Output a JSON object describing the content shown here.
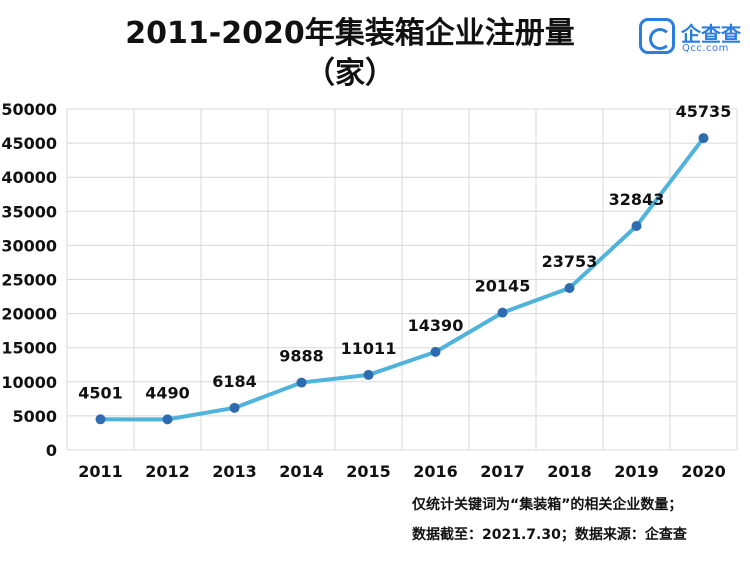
{
  "title_line1": "2011-2020年集装箱企业注册量",
  "title_line2": "（家）",
  "logo": {
    "brand": "企查查",
    "domain": "Qcc.com",
    "icon": "qcc-logo-icon",
    "color": "#2a7de1"
  },
  "notes": {
    "line1": "仅统计关键词为“集装箱”的相关企业数量；",
    "line2": "数据截至：2021.7.30；数据来源：企查查"
  },
  "chart_data": {
    "type": "line",
    "categories": [
      "2011",
      "2012",
      "2013",
      "2014",
      "2015",
      "2016",
      "2017",
      "2018",
      "2019",
      "2020"
    ],
    "values": [
      4501,
      4490,
      6184,
      9888,
      11011,
      14390,
      20145,
      23753,
      32843,
      45735
    ],
    "ylim": [
      0,
      50000
    ],
    "yticks": [
      0,
      5000,
      10000,
      15000,
      20000,
      25000,
      30000,
      35000,
      40000,
      45000,
      50000
    ],
    "grid": true,
    "line_color": "#4fb3dc",
    "marker_color": "#2f6bb0",
    "grid_color": "#d8d8d8"
  }
}
